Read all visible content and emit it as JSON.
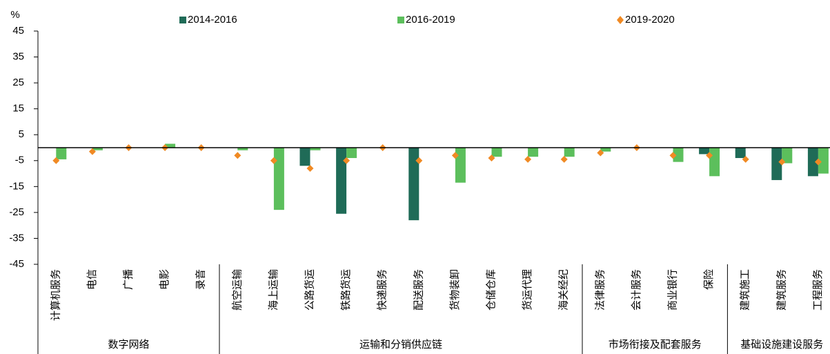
{
  "chart_data": {
    "type": "bar",
    "y_unit": "%",
    "groups": [
      {
        "name": "数字网络",
        "categories": [
          "计算机服务",
          "电信",
          "广播",
          "电影",
          "录音"
        ]
      },
      {
        "name": "运输和分销供应链",
        "categories": [
          "航空运输",
          "海上运输",
          "公路货运",
          "铁路货运",
          "快递服务",
          "配送服务",
          "货物装卸",
          "仓储仓库",
          "货运代理",
          "海关经纪"
        ]
      },
      {
        "name": "市场衔接及配套服务",
        "categories": [
          "法律服务",
          "会计服务",
          "商业银行",
          "保险"
        ]
      },
      {
        "name": "基础设施建设服务",
        "categories": [
          "建筑施工",
          "建筑服务",
          "工程服务"
        ]
      }
    ],
    "series": [
      {
        "name": "2014-2016",
        "color": "#1f6b57",
        "marker": "bar",
        "values": [
          0,
          0,
          0,
          0,
          0,
          0,
          0,
          -7,
          -25.5,
          0,
          -28,
          0,
          0,
          0,
          0,
          0,
          0,
          0,
          -2.5,
          -4,
          -12.5,
          -11
        ]
      },
      {
        "name": "2016-2019",
        "color": "#5cbf5c",
        "marker": "bar",
        "values": [
          -4.5,
          -1,
          0,
          1.5,
          0,
          -1,
          -24,
          -1,
          -4,
          0,
          0,
          -13.5,
          -3.5,
          -3.5,
          -3.5,
          -1.5,
          0,
          -5.5,
          -11,
          0,
          -6,
          -10
        ]
      },
      {
        "name": "2019-2020",
        "color": "#f08a24",
        "marker": "diamond",
        "values": [
          -5,
          -1.5,
          0,
          0,
          0,
          -3,
          -5,
          -8,
          -5,
          0,
          -5,
          -3,
          -4,
          -4.5,
          -4.5,
          -2,
          0,
          -3,
          -3,
          -4.5,
          -5.5,
          -5.5
        ]
      }
    ],
    "ylim": [
      -45,
      45
    ],
    "yticks": [
      -45,
      -35,
      -25,
      -15,
      -5,
      5,
      15,
      25,
      35,
      45
    ],
    "grid": false
  }
}
